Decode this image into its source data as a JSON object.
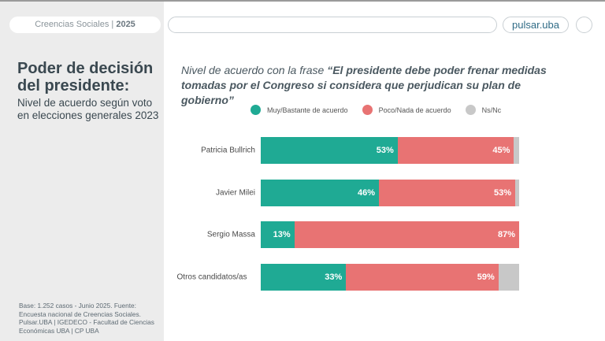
{
  "header": {
    "section": "Creencias Sociales",
    "year": "2025",
    "logo": "pulsar.uba"
  },
  "sidebar": {
    "title": "Poder de decisión del presidente:",
    "subtitle": "Nivel de acuerdo según voto en elecciones generales 2023",
    "source": "Base: 1.252 casos - Junio 2025. Fuente: Encuesta nacional de Creencias Sociales. Pulsar.UBA | IGEDECO - Facultad de Ciencias Económicas UBA | CP UBA"
  },
  "chart_data": {
    "type": "bar",
    "orientation": "horizontal",
    "stacked": true,
    "title_prefix": "Nivel de acuerdo con la frase ",
    "title_quote": "“El presidente debe poder frenar medidas tomadas por el Congreso si considera que perjudican su plan de gobierno”",
    "legend_position": "top",
    "categories": [
      "Patricia Bullrich",
      "Javier Milei",
      "Sergio Massa",
      "Otros candidatos/as"
    ],
    "series": [
      {
        "name": "Muy/Bastante  de acuerdo",
        "color": "#1faa94",
        "values": [
          53,
          46,
          13,
          33
        ]
      },
      {
        "name": "Poco/Nada de acuerdo",
        "color": "#e87373",
        "values": [
          45,
          53,
          87,
          59
        ]
      },
      {
        "name": "Ns/Nc",
        "color": "#c8c8c8",
        "values": [
          2,
          1,
          0,
          8
        ]
      }
    ],
    "unit": "%"
  }
}
